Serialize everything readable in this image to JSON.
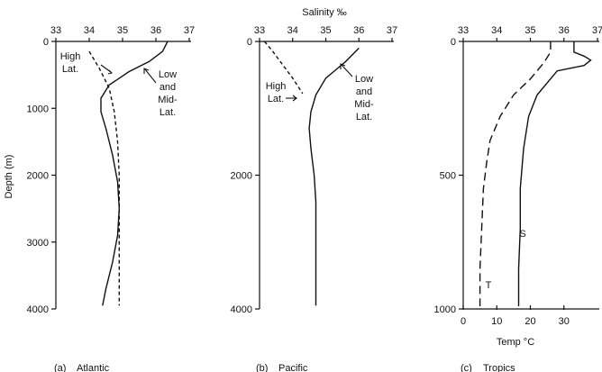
{
  "salinity_title": "Salinity ‰",
  "chart_data": [
    {
      "type": "line",
      "caption_letter": "(a)",
      "caption": "Atlantic",
      "xlabel": "Salinity ‰",
      "ylabel": "Depth (m)",
      "xlim": [
        33,
        37
      ],
      "ylim": [
        0,
        4000
      ],
      "x_ticks": [
        33,
        34,
        35,
        36,
        37
      ],
      "y_ticks": [
        0,
        1000,
        2000,
        3000,
        4000
      ],
      "series": [
        {
          "name": "Low and Mid-Lat.",
          "label_lines": [
            "Low",
            "and",
            "Mid-",
            "Lat."
          ],
          "style": "solid",
          "points": [
            [
              36.35,
              0
            ],
            [
              36.2,
              150
            ],
            [
              35.8,
              300
            ],
            [
              35.2,
              450
            ],
            [
              34.6,
              650
            ],
            [
              34.35,
              850
            ],
            [
              34.35,
              1050
            ],
            [
              34.5,
              1300
            ],
            [
              34.7,
              1700
            ],
            [
              34.85,
              2100
            ],
            [
              34.9,
              2500
            ],
            [
              34.85,
              2900
            ],
            [
              34.7,
              3300
            ],
            [
              34.5,
              3700
            ],
            [
              34.4,
              3950
            ]
          ]
        },
        {
          "name": "High Lat.",
          "label_lines": [
            "High",
            "Lat."
          ],
          "style": "dashed",
          "points": [
            [
              34.0,
              150
            ],
            [
              34.3,
              400
            ],
            [
              34.6,
              700
            ],
            [
              34.75,
              1050
            ],
            [
              34.85,
              1500
            ],
            [
              34.9,
              2000
            ],
            [
              34.9,
              2500
            ],
            [
              34.9,
              3000
            ],
            [
              34.9,
              3500
            ],
            [
              34.9,
              3950
            ]
          ]
        }
      ]
    },
    {
      "type": "line",
      "caption_letter": "(b)",
      "caption": "Pacific",
      "xlabel": "Salinity ‰",
      "xlim": [
        33,
        37
      ],
      "ylim": [
        0,
        4000
      ],
      "x_ticks": [
        33,
        34,
        35,
        36,
        37
      ],
      "y_ticks": [
        0,
        2000,
        4000
      ],
      "series": [
        {
          "name": "Low and Mid-Lat.",
          "label_lines": [
            "Low",
            "and",
            "Mid-",
            "Lat."
          ],
          "style": "solid",
          "points": [
            [
              36.0,
              100
            ],
            [
              35.6,
              300
            ],
            [
              35.0,
              550
            ],
            [
              34.7,
              800
            ],
            [
              34.55,
              1050
            ],
            [
              34.5,
              1300
            ],
            [
              34.55,
              1600
            ],
            [
              34.65,
              2000
            ],
            [
              34.7,
              2400
            ],
            [
              34.7,
              2900
            ],
            [
              34.7,
              3400
            ],
            [
              34.7,
              3950
            ]
          ]
        },
        {
          "name": "High Lat.",
          "label_lines": [
            "High",
            "Lat."
          ],
          "style": "dashed",
          "points": [
            [
              33.15,
              0
            ],
            [
              33.4,
              150
            ],
            [
              33.7,
              350
            ],
            [
              34.0,
              550
            ],
            [
              34.2,
              700
            ],
            [
              34.3,
              780
            ]
          ]
        }
      ]
    },
    {
      "type": "line",
      "caption_letter": "(c)",
      "caption": "Tropics",
      "xlabel": "Temp °C",
      "x_ticks": [
        33,
        34,
        35,
        36,
        37
      ],
      "x2_ticks": [
        0,
        10,
        20,
        30
      ],
      "x2lim": [
        0,
        40
      ],
      "ylim": [
        0,
        1000
      ],
      "y_ticks": [
        0,
        500,
        1000
      ],
      "xlim": [
        33,
        37
      ],
      "series": [
        {
          "name": "S",
          "style": "solid",
          "axis": "salinity",
          "points": [
            [
              36.3,
              0
            ],
            [
              36.3,
              40
            ],
            [
              36.6,
              55
            ],
            [
              36.8,
              70
            ],
            [
              36.6,
              90
            ],
            [
              36.2,
              100
            ],
            [
              35.8,
              110
            ],
            [
              35.6,
              140
            ],
            [
              35.2,
              200
            ],
            [
              34.95,
              280
            ],
            [
              34.8,
              400
            ],
            [
              34.7,
              550
            ],
            [
              34.7,
              700
            ],
            [
              34.65,
              850
            ],
            [
              34.65,
              990
            ]
          ]
        },
        {
          "name": "T",
          "style": "longdash",
          "axis": "temperature",
          "points": [
            [
              26,
              0
            ],
            [
              26,
              40
            ],
            [
              24,
              80
            ],
            [
              20,
              140
            ],
            [
              15,
              200
            ],
            [
              11,
              280
            ],
            [
              8,
              370
            ],
            [
              7,
              450
            ],
            [
              6,
              550
            ],
            [
              5.5,
              700
            ],
            [
              5,
              850
            ],
            [
              5,
              990
            ]
          ]
        }
      ]
    }
  ]
}
